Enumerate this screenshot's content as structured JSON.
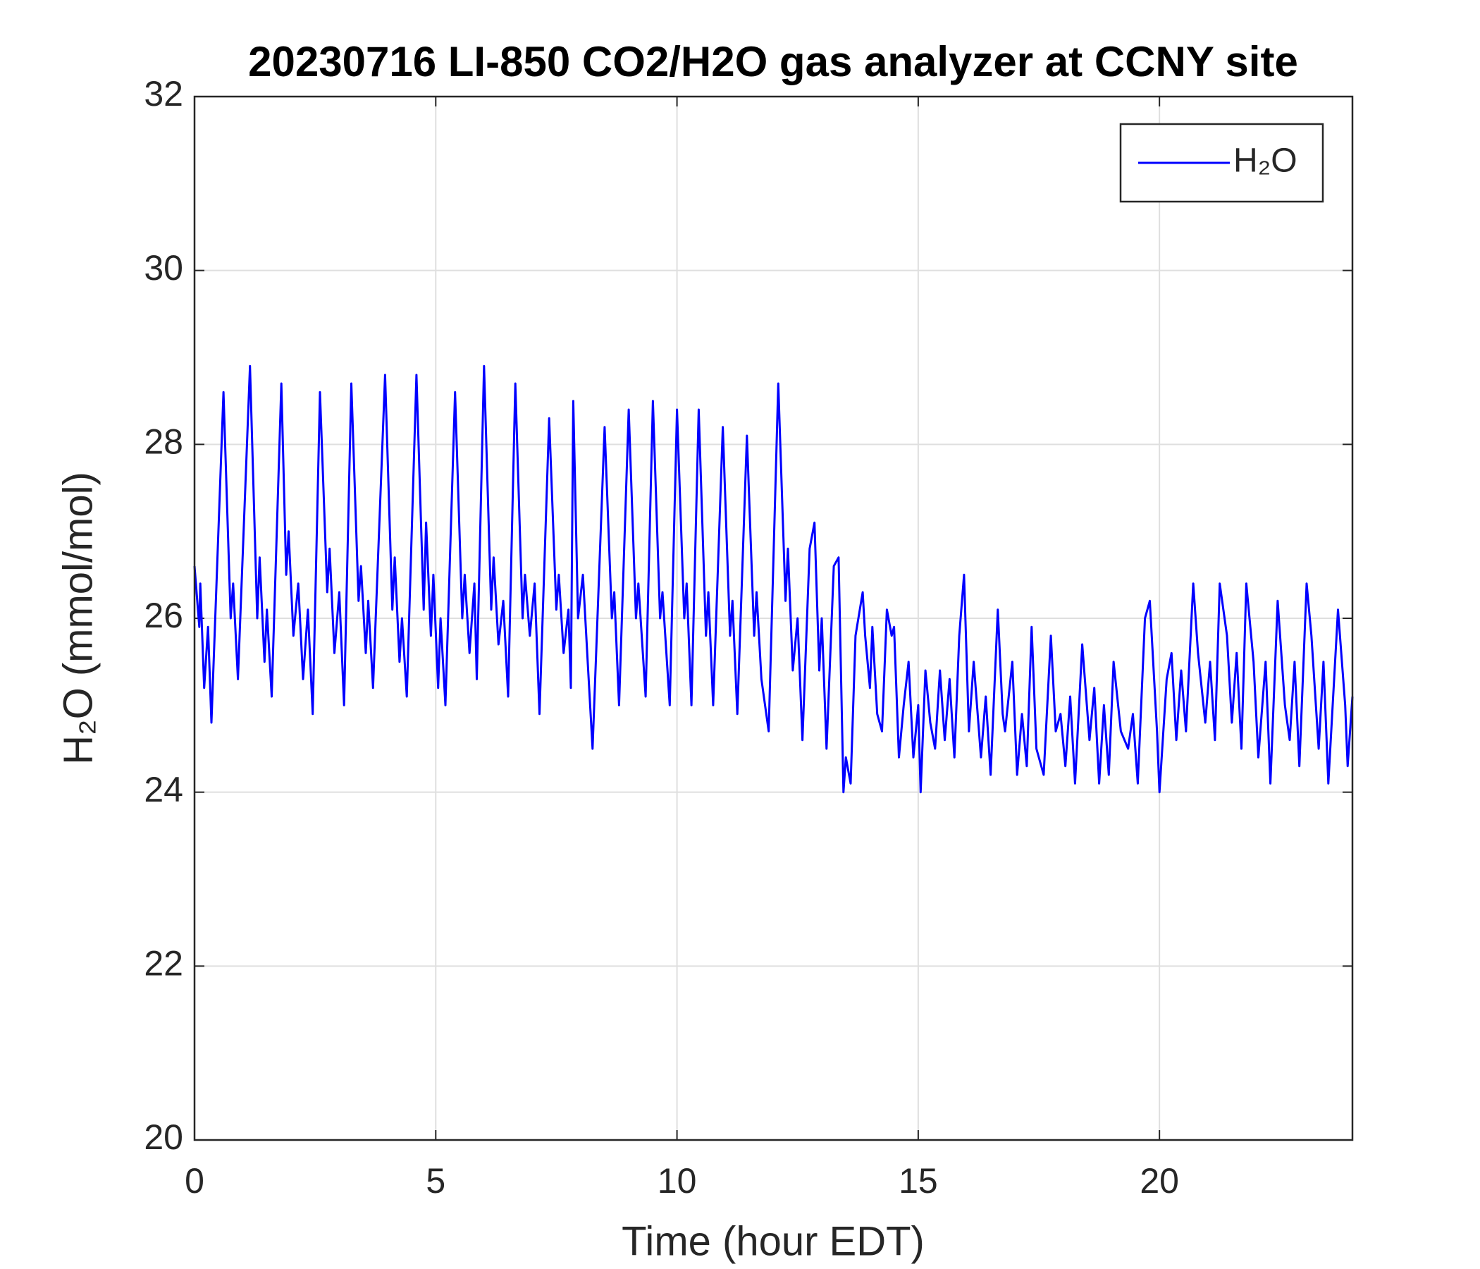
{
  "chart_data": {
    "type": "line",
    "title": "20230716 LI-850 CO2/H2O gas analyzer at CCNY site",
    "xlabel": "Time (hour EDT)",
    "ylabel": "H₂O (mmol/mol)",
    "xlim": [
      0,
      24
    ],
    "xticks": [
      0,
      5,
      10,
      15,
      20
    ],
    "ylim": [
      20,
      32
    ],
    "yticks": [
      20,
      22,
      24,
      26,
      28,
      30,
      32
    ],
    "grid": true,
    "legend": "upper right",
    "x": [
      0,
      0.1,
      0.12,
      0.2,
      0.28,
      0.35,
      0.6,
      0.75,
      0.8,
      0.9,
      1.15,
      1.3,
      1.35,
      1.45,
      1.5,
      1.6,
      1.8,
      1.9,
      1.95,
      2.05,
      2.15,
      2.25,
      2.35,
      2.45,
      2.6,
      2.75,
      2.8,
      2.9,
      3.0,
      3.1,
      3.25,
      3.4,
      3.45,
      3.55,
      3.6,
      3.7,
      3.95,
      4.1,
      4.15,
      4.25,
      4.3,
      4.4,
      4.6,
      4.75,
      4.8,
      4.9,
      4.95,
      5.05,
      5.1,
      5.2,
      5.4,
      5.55,
      5.6,
      5.7,
      5.8,
      5.85,
      6.0,
      6.15,
      6.2,
      6.3,
      6.4,
      6.5,
      6.65,
      6.8,
      6.85,
      6.95,
      7.05,
      7.15,
      7.35,
      7.5,
      7.55,
      7.65,
      7.75,
      7.8,
      7.85,
      7.95,
      8.05,
      8.15,
      8.25,
      8.5,
      8.65,
      8.7,
      8.8,
      9.0,
      9.15,
      9.2,
      9.35,
      9.5,
      9.65,
      9.7,
      9.85,
      10.0,
      10.15,
      10.2,
      10.3,
      10.45,
      10.6,
      10.65,
      10.75,
      10.95,
      11.1,
      11.15,
      11.25,
      11.45,
      11.6,
      11.65,
      11.75,
      11.9,
      12.1,
      12.25,
      12.3,
      12.4,
      12.5,
      12.6,
      12.75,
      12.85,
      12.95,
      13.0,
      13.1,
      13.25,
      13.35,
      13.45,
      13.5,
      13.6,
      13.7,
      13.85,
      13.9,
      14.0,
      14.05,
      14.15,
      14.25,
      14.35,
      14.45,
      14.5,
      14.6,
      14.7,
      14.8,
      14.9,
      15.0,
      15.05,
      15.15,
      15.25,
      15.35,
      15.45,
      15.55,
      15.65,
      15.75,
      15.85,
      15.95,
      16.05,
      16.15,
      16.3,
      16.4,
      16.5,
      16.65,
      16.75,
      16.8,
      16.95,
      17.05,
      17.15,
      17.25,
      17.35,
      17.45,
      17.6,
      17.75,
      17.85,
      17.95,
      18.05,
      18.15,
      18.25,
      18.4,
      18.55,
      18.65,
      18.75,
      18.85,
      18.95,
      19.05,
      19.2,
      19.35,
      19.45,
      19.55,
      19.7,
      19.8,
      19.95,
      20.0,
      20.15,
      20.25,
      20.35,
      20.45,
      20.55,
      20.7,
      20.8,
      20.95,
      21.05,
      21.15,
      21.25,
      21.4,
      21.5,
      21.6,
      21.7,
      21.8,
      21.95,
      22.05,
      22.2,
      22.3,
      22.45,
      22.6,
      22.7,
      22.8,
      22.9,
      23.05,
      23.15,
      23.3,
      23.4,
      23.5,
      23.7,
      23.85,
      23.9,
      24.0
    ],
    "series": [
      {
        "name": "H₂O",
        "color": "#0000ff",
        "values": [
          26.6,
          25.9,
          26.4,
          25.2,
          25.9,
          24.8,
          28.6,
          26.0,
          26.4,
          25.3,
          28.9,
          26.0,
          26.7,
          25.5,
          26.1,
          25.1,
          28.7,
          26.5,
          27.0,
          25.8,
          26.4,
          25.3,
          26.1,
          24.9,
          28.6,
          26.3,
          26.8,
          25.6,
          26.3,
          25.0,
          28.7,
          26.2,
          26.6,
          25.6,
          26.2,
          25.2,
          28.8,
          26.1,
          26.7,
          25.5,
          26.0,
          25.1,
          28.8,
          26.1,
          27.1,
          25.8,
          26.5,
          25.2,
          26.0,
          25.0,
          28.6,
          26.0,
          26.5,
          25.6,
          26.4,
          25.3,
          28.9,
          26.1,
          26.7,
          25.7,
          26.2,
          25.1,
          28.7,
          26.0,
          26.5,
          25.8,
          26.4,
          24.9,
          28.3,
          26.1,
          26.5,
          25.6,
          26.1,
          25.2,
          28.5,
          26.0,
          26.5,
          25.5,
          24.5,
          28.2,
          26.0,
          26.3,
          25.0,
          28.4,
          26.0,
          26.4,
          25.1,
          28.5,
          26.0,
          26.3,
          25.0,
          28.4,
          26.0,
          26.4,
          25.0,
          28.4,
          25.8,
          26.3,
          25.0,
          28.2,
          25.8,
          26.2,
          24.9,
          28.1,
          25.8,
          26.3,
          25.3,
          24.7,
          28.7,
          26.2,
          26.8,
          25.4,
          26.0,
          24.6,
          26.8,
          27.1,
          25.4,
          26.0,
          24.5,
          26.6,
          26.7,
          24.0,
          24.4,
          24.1,
          25.8,
          26.3,
          25.8,
          25.2,
          25.9,
          24.9,
          24.7,
          26.1,
          25.8,
          25.9,
          24.4,
          25.0,
          25.5,
          24.4,
          25.0,
          24.0,
          25.4,
          24.8,
          24.5,
          25.4,
          24.6,
          25.3,
          24.4,
          25.8,
          26.5,
          24.7,
          25.5,
          24.4,
          25.1,
          24.2,
          26.1,
          24.9,
          24.7,
          25.5,
          24.2,
          24.9,
          24.3,
          25.9,
          24.5,
          24.2,
          25.8,
          24.7,
          24.9,
          24.3,
          25.1,
          24.1,
          25.7,
          24.6,
          25.2,
          24.1,
          25.0,
          24.2,
          25.5,
          24.7,
          24.5,
          24.9,
          24.1,
          26.0,
          26.2,
          24.7,
          24.0,
          25.3,
          25.6,
          24.6,
          25.4,
          24.7,
          26.4,
          25.6,
          24.8,
          25.5,
          24.6,
          26.4,
          25.8,
          24.8,
          25.6,
          24.5,
          26.4,
          25.5,
          24.4,
          25.5,
          24.1,
          26.2,
          25.0,
          24.6,
          25.5,
          24.3,
          26.4,
          25.8,
          24.5,
          25.5,
          24.1,
          26.1,
          25.0,
          24.3,
          25.1
        ]
      }
    ]
  }
}
